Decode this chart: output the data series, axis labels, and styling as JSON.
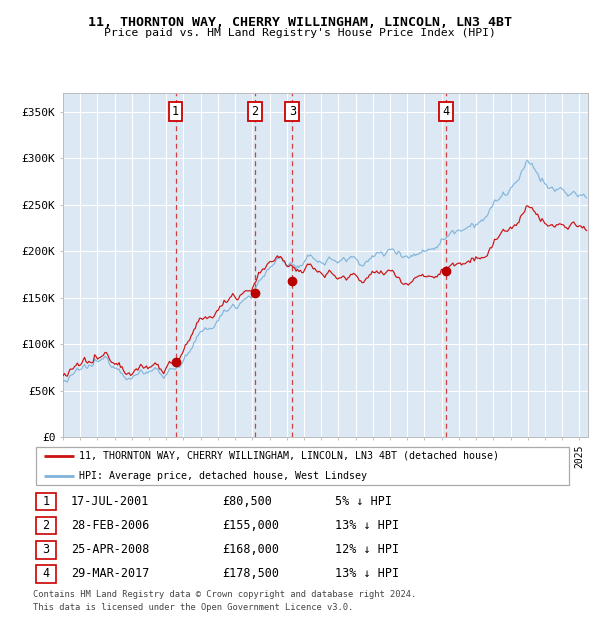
{
  "title1": "11, THORNTON WAY, CHERRY WILLINGHAM, LINCOLN, LN3 4BT",
  "title2": "Price paid vs. HM Land Registry's House Price Index (HPI)",
  "ylabel_ticks": [
    "£0",
    "£50K",
    "£100K",
    "£150K",
    "£200K",
    "£250K",
    "£300K",
    "£350K"
  ],
  "ytick_values": [
    0,
    50000,
    100000,
    150000,
    200000,
    250000,
    300000,
    350000
  ],
  "ylim": [
    0,
    370000
  ],
  "xlim_start": 1995.0,
  "xlim_end": 2025.5,
  "plot_bg_color": "#dce9f5",
  "line_color_hpi": "#7fb3d9",
  "line_color_price": "#cc1111",
  "dot_color": "#bb0000",
  "vline_color": "#cc2222",
  "label1": "11, THORNTON WAY, CHERRY WILLINGHAM, LINCOLN, LN3 4BT (detached house)",
  "label2": "HPI: Average price, detached house, West Lindsey",
  "sales": [
    {
      "num": 1,
      "date": "17-JUL-2001",
      "price": 80500,
      "pct": "5%",
      "year": 2001.54
    },
    {
      "num": 2,
      "date": "28-FEB-2006",
      "price": 155000,
      "pct": "13%",
      "year": 2006.16
    },
    {
      "num": 3,
      "date": "25-APR-2008",
      "price": 168000,
      "pct": "12%",
      "year": 2008.32
    },
    {
      "num": 4,
      "date": "29-MAR-2017",
      "price": 178500,
      "pct": "13%",
      "year": 2017.25
    }
  ],
  "footnote1": "Contains HM Land Registry data © Crown copyright and database right 2024.",
  "footnote2": "This data is licensed under the Open Government Licence v3.0.",
  "fig_width": 6.0,
  "fig_height": 6.2,
  "dpi": 100
}
